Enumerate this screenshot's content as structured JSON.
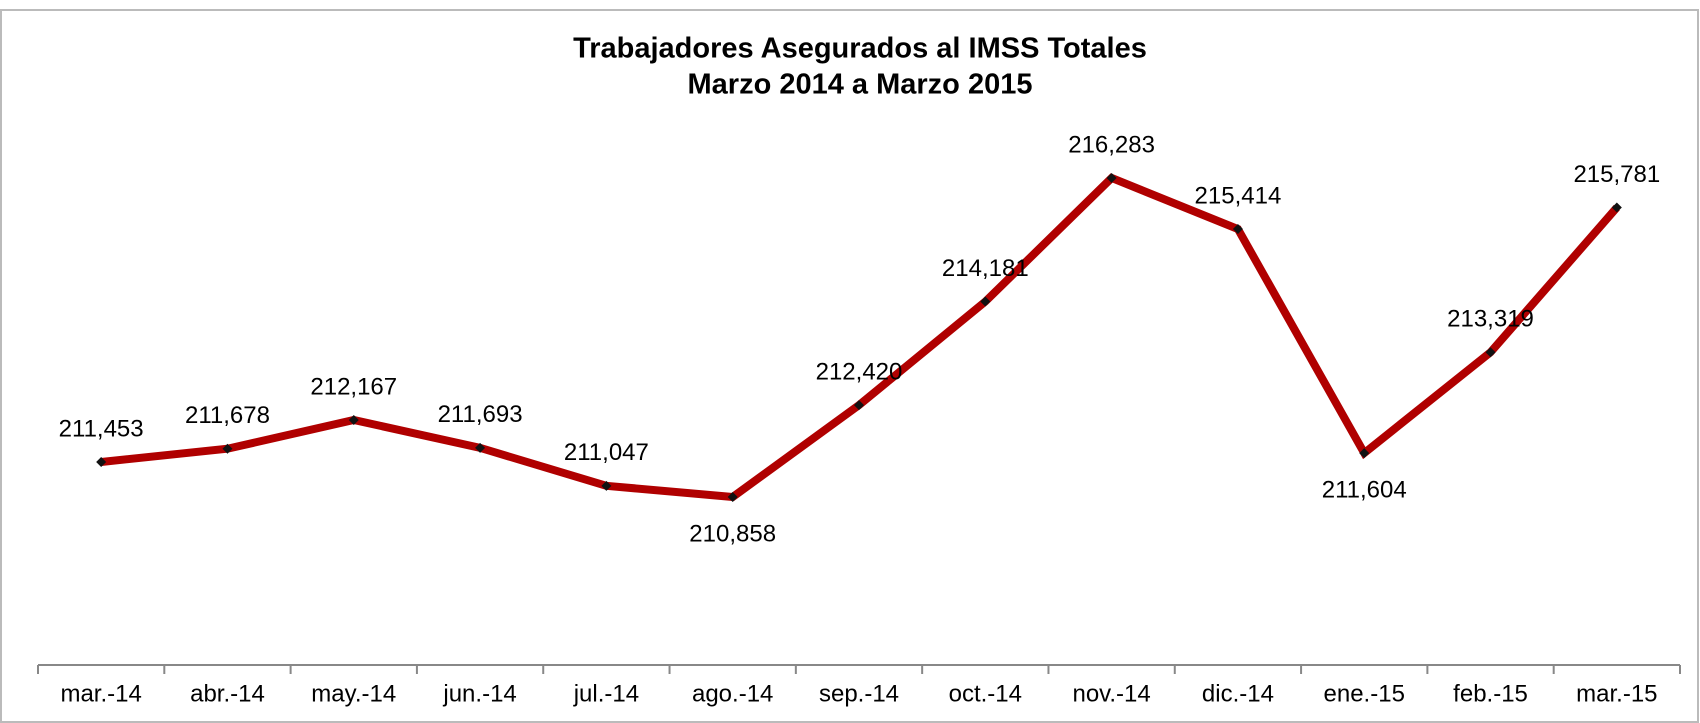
{
  "chart_data": {
    "type": "line",
    "title": [
      "Trabajadores Asegurados al IMSS Totales",
      "Marzo 2014 a Marzo 2015"
    ],
    "categories": [
      "mar.-14",
      "abr.-14",
      "may.-14",
      "jun.-14",
      "jul.-14",
      "ago.-14",
      "sep.-14",
      "oct.-14",
      "nov.-14",
      "dic.-14",
      "ene.-15",
      "feb.-15",
      "mar.-15"
    ],
    "series": [
      {
        "color": "#b00000",
        "values": [
          211453,
          211678,
          212167,
          211693,
          211047,
          210858,
          212420,
          214181,
          216283,
          215414,
          211604,
          213319,
          215781
        ],
        "value_labels": [
          "211,453",
          "211,678",
          "212,167",
          "211,693",
          "211,047",
          "210,858",
          "212,420",
          "214,181",
          "216,283",
          "215,414",
          "211,604",
          "213,319",
          "215,781"
        ]
      }
    ],
    "ylim": [
      208000,
      218000
    ]
  }
}
